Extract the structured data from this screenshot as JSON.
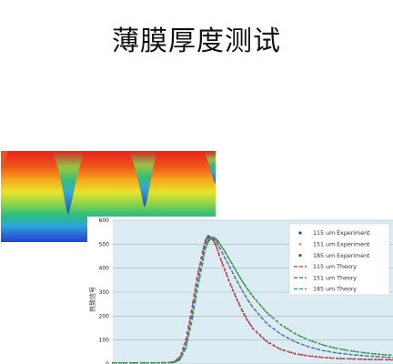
{
  "slide": {
    "title": "薄膜厚度测试"
  },
  "colors": {
    "plot_bg": "#dcecf3",
    "grid": "#9fb4bf",
    "exp_115": "#1f4e79",
    "exp_151": "#e3a34f",
    "exp_185": "#3a5f4f",
    "theory_115": "#e8313a",
    "theory_151": "#3a72c4",
    "theory_185": "#3aa84f"
  },
  "chart_data": {
    "type": "line",
    "ylabel": "热致信号",
    "y_ticks": [
      "0",
      "100",
      "200",
      "300",
      "400",
      "500",
      "600"
    ],
    "ylim": [
      0,
      600
    ],
    "xlim": [
      0,
      100
    ],
    "grid": "horizontal",
    "legend_position": "top-right",
    "legend": [
      "115 um Experiment",
      "151 um Experiment",
      "185 um Experiment",
      "115 um Theory",
      "151 um Theory",
      "185 um Theory"
    ],
    "x": [
      0,
      5,
      10,
      15,
      20,
      22,
      24,
      26,
      28,
      30,
      32,
      33,
      34,
      35,
      36,
      37,
      38,
      40,
      42,
      44,
      46,
      48,
      50,
      55,
      60,
      65,
      70,
      75,
      80,
      85,
      90,
      95,
      100
    ],
    "series": [
      {
        "name": "115 um Experiment",
        "kind": "experiment",
        "color_key": "exp_115",
        "values": [
          5,
          5,
          5,
          5,
          6,
          10,
          30,
          100,
          220,
          360,
          470,
          515,
          535,
          530,
          515,
          490,
          455,
          395,
          335,
          280,
          230,
          185,
          150,
          95,
          62,
          44,
          34,
          28,
          24,
          22,
          20,
          19,
          18
        ]
      },
      {
        "name": "151 um Experiment",
        "kind": "experiment",
        "color_key": "exp_151",
        "values": [
          5,
          5,
          5,
          5,
          6,
          8,
          22,
          80,
          190,
          330,
          445,
          500,
          525,
          530,
          525,
          510,
          490,
          445,
          400,
          355,
          312,
          272,
          238,
          170,
          125,
          94,
          72,
          57,
          47,
          40,
          35,
          31,
          28
        ]
      },
      {
        "name": "185 um Experiment",
        "kind": "experiment",
        "color_key": "exp_185",
        "values": [
          5,
          5,
          5,
          5,
          5,
          7,
          18,
          65,
          165,
          300,
          420,
          480,
          510,
          525,
          528,
          520,
          505,
          470,
          430,
          390,
          350,
          315,
          283,
          215,
          165,
          128,
          100,
          80,
          65,
          55,
          47,
          41,
          37
        ]
      },
      {
        "name": "115 um Theory",
        "kind": "theory",
        "color_key": "theory_115",
        "values": [
          5,
          5,
          5,
          5,
          6,
          9,
          28,
          95,
          215,
          355,
          465,
          510,
          530,
          528,
          512,
          488,
          452,
          390,
          330,
          275,
          225,
          182,
          147,
          92,
          60,
          42,
          33,
          27,
          23,
          21,
          19,
          18,
          17
        ]
      },
      {
        "name": "151 um Theory",
        "kind": "theory",
        "color_key": "theory_151",
        "values": [
          5,
          5,
          5,
          5,
          6,
          8,
          22,
          78,
          188,
          328,
          442,
          498,
          522,
          528,
          522,
          508,
          488,
          442,
          398,
          352,
          310,
          270,
          236,
          168,
          124,
          93,
          71,
          56,
          46,
          39,
          34,
          30,
          27
        ]
      },
      {
        "name": "185 um Theory",
        "kind": "theory",
        "color_key": "theory_185",
        "values": [
          5,
          5,
          5,
          5,
          5,
          7,
          17,
          63,
          162,
          298,
          418,
          478,
          508,
          522,
          526,
          518,
          503,
          468,
          428,
          388,
          348,
          313,
          281,
          213,
          163,
          126,
          99,
          79,
          64,
          54,
          46,
          40,
          36
        ]
      }
    ]
  }
}
